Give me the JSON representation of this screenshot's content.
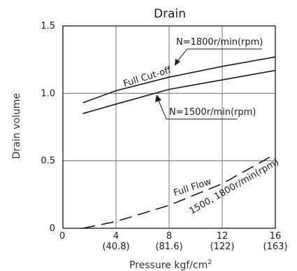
{
  "chart_data": {
    "type": "line",
    "title": "Drain",
    "xlabel": "Pressure kgf/cm",
    "xlabel_superscript": "2",
    "ylabel": "Drain volume",
    "xlim": [
      0,
      16
    ],
    "ylim": [
      0,
      1.5
    ],
    "grid": true,
    "x_ticks": [
      {
        "value": 0,
        "label": "0",
        "sublabel": ""
      },
      {
        "value": 4,
        "label": "4",
        "sublabel": "(40.8)"
      },
      {
        "value": 8,
        "label": "8",
        "sublabel": "(81.6)"
      },
      {
        "value": 12,
        "label": "12",
        "sublabel": "(122)"
      },
      {
        "value": 16,
        "label": "16",
        "sublabel": "(163)"
      }
    ],
    "y_ticks": [
      {
        "value": 0,
        "label": "0"
      },
      {
        "value": 0.5,
        "label": "0.5"
      },
      {
        "value": 1.0,
        "label": "1.0"
      },
      {
        "value": 1.5,
        "label": "1.5"
      }
    ],
    "series": [
      {
        "label": "N=1800r/min(rpm)",
        "style": "solid",
        "color": "#1a1a1a",
        "x": [
          1.5,
          4,
          8,
          12,
          16
        ],
        "y": [
          0.93,
          1.02,
          1.12,
          1.2,
          1.27
        ]
      },
      {
        "label": "N=1500r/min(rpm)",
        "style": "solid",
        "color": "#1a1a1a",
        "x": [
          1.5,
          4,
          8,
          12,
          16
        ],
        "y": [
          0.85,
          0.92,
          1.03,
          1.1,
          1.17
        ]
      },
      {
        "label": "1500, 1800r/min(rpm)",
        "style": "dashed",
        "color": "#1a1a1a",
        "x": [
          1.5,
          4,
          8,
          12,
          16
        ],
        "y": [
          0.0,
          0.05,
          0.17,
          0.33,
          0.55
        ]
      }
    ],
    "annotations": [
      {
        "text": "Full Cut-off"
      },
      {
        "text": "Full Flow"
      }
    ]
  }
}
